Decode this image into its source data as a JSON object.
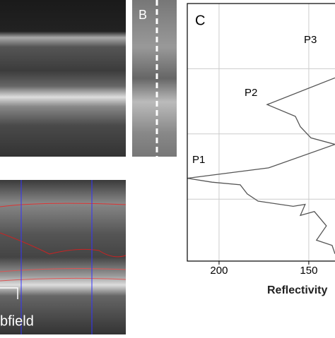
{
  "chart_data": {
    "type": "line",
    "panel_label": "C",
    "x_label": "Reflectivity",
    "xlim": [
      217.7,
      135.4
    ],
    "xticks": [
      200,
      150
    ],
    "ylim": [
      0,
      3.95
    ],
    "yticks": [
      1,
      2,
      3
    ],
    "grid": true,
    "color": "#555555",
    "values": [
      135.4,
      173.2,
      157.5,
      154.7,
      148.8,
      135.4,
      172.4,
      217.7,
      203.9,
      188.2,
      184.3,
      178.3,
      158.7,
      152.0,
      154.7,
      146.9,
      140.2,
      145.7,
      137.0,
      135.4
    ],
    "positions": [
      1.14,
      1.55,
      1.73,
      1.89,
      2.06,
      2.16,
      2.52,
      2.68,
      2.74,
      2.78,
      2.92,
      3.03,
      3.11,
      3.08,
      3.25,
      3.19,
      3.41,
      3.63,
      3.71,
      3.84
    ],
    "annotations": [
      "P1",
      "P2",
      "P3"
    ]
  },
  "panels": {
    "b_label": "B",
    "subfield_text": "bfield"
  }
}
